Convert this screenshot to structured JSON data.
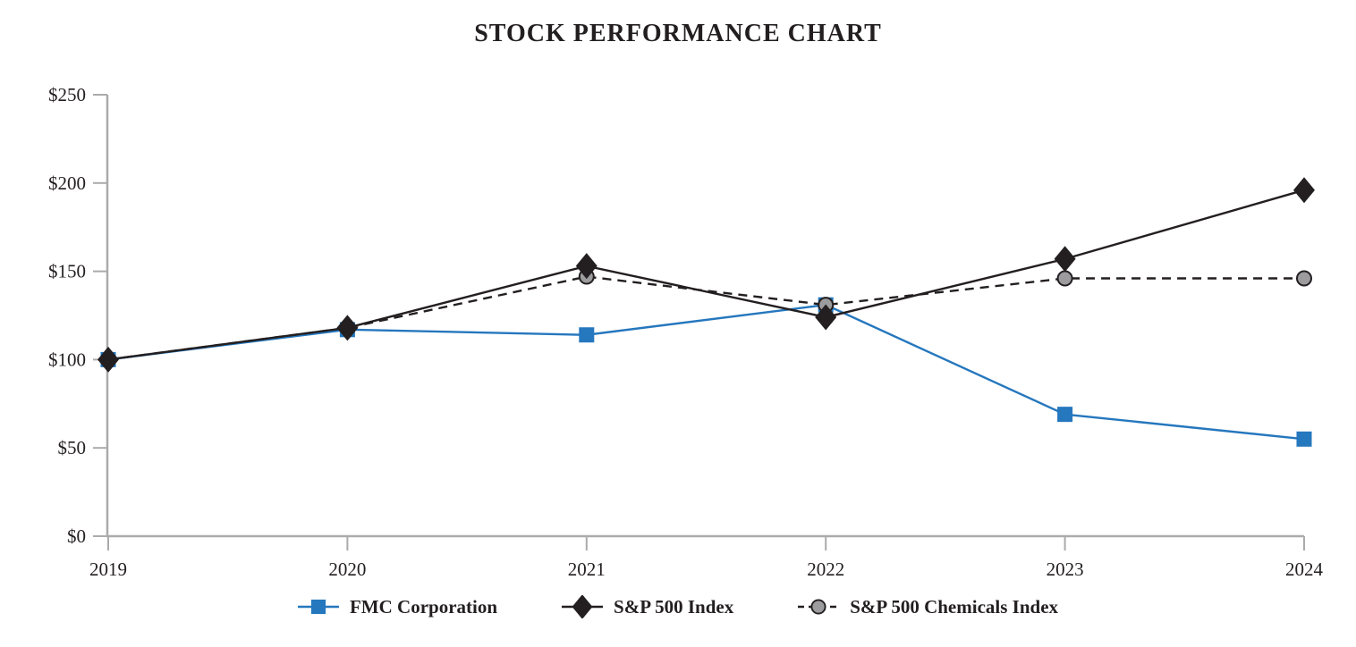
{
  "chart_data": {
    "type": "line",
    "title": "STOCK PERFORMANCE CHART",
    "categories": [
      "2019",
      "2020",
      "2021",
      "2022",
      "2023",
      "2024"
    ],
    "series": [
      {
        "name": "FMC Corporation",
        "values": [
          100,
          117,
          114,
          131,
          69,
          55
        ],
        "color": "#2577BE",
        "line_color": "#2577BE",
        "marker": "square",
        "line_style": "solid"
      },
      {
        "name": "S&P 500 Index",
        "values": [
          100,
          118,
          153,
          124,
          157,
          196
        ],
        "color": "#231F20",
        "line_color": "#231F20",
        "marker": "diamond",
        "line_style": "solid"
      },
      {
        "name": "S&P 500 Chemicals Index",
        "values": [
          100,
          118,
          147,
          131,
          146,
          146
        ],
        "color": "#9C9C9E",
        "line_color": "#231F20",
        "marker": "circle",
        "line_style": "dashed"
      }
    ],
    "xlabel": "",
    "ylabel": "",
    "ylim": [
      0,
      250
    ],
    "y_tick_values": [
      0,
      50,
      100,
      150,
      200,
      250
    ],
    "y_tick_labels": [
      "$0",
      "$50",
      "$100",
      "$150",
      "$200",
      "$250"
    ],
    "axis_color": "#ABABAB",
    "text_color": "#231F20",
    "grid": false,
    "legend_position": "bottom"
  }
}
